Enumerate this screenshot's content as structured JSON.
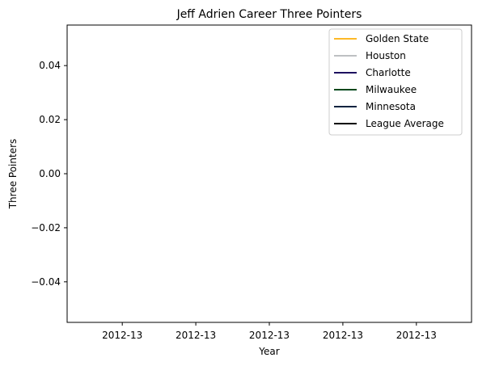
{
  "chart_data": {
    "type": "line",
    "title": "Jeff Adrien Career Three Pointers",
    "xlabel": "Year",
    "ylabel": "Three Pointers",
    "x_ticks": [
      "2012-13",
      "2012-13",
      "2012-13",
      "2012-13",
      "2012-13"
    ],
    "y_ticks": [
      "0.04",
      "0.02",
      "0.00",
      "−0.02",
      "−0.04"
    ],
    "ylim": [
      -0.055,
      0.055
    ],
    "grid": false,
    "legend_position": "top-right",
    "series": [
      {
        "name": "Golden State",
        "color": "#FDB927",
        "values": []
      },
      {
        "name": "Houston",
        "color": "#BEC0C2",
        "values": []
      },
      {
        "name": "Charlotte",
        "color": "#1D1160",
        "values": []
      },
      {
        "name": "Milwaukee",
        "color": "#00471B",
        "values": []
      },
      {
        "name": "Minnesota",
        "color": "#0C2340",
        "values": []
      },
      {
        "name": "League Average",
        "color": "#000000",
        "values": []
      }
    ]
  }
}
